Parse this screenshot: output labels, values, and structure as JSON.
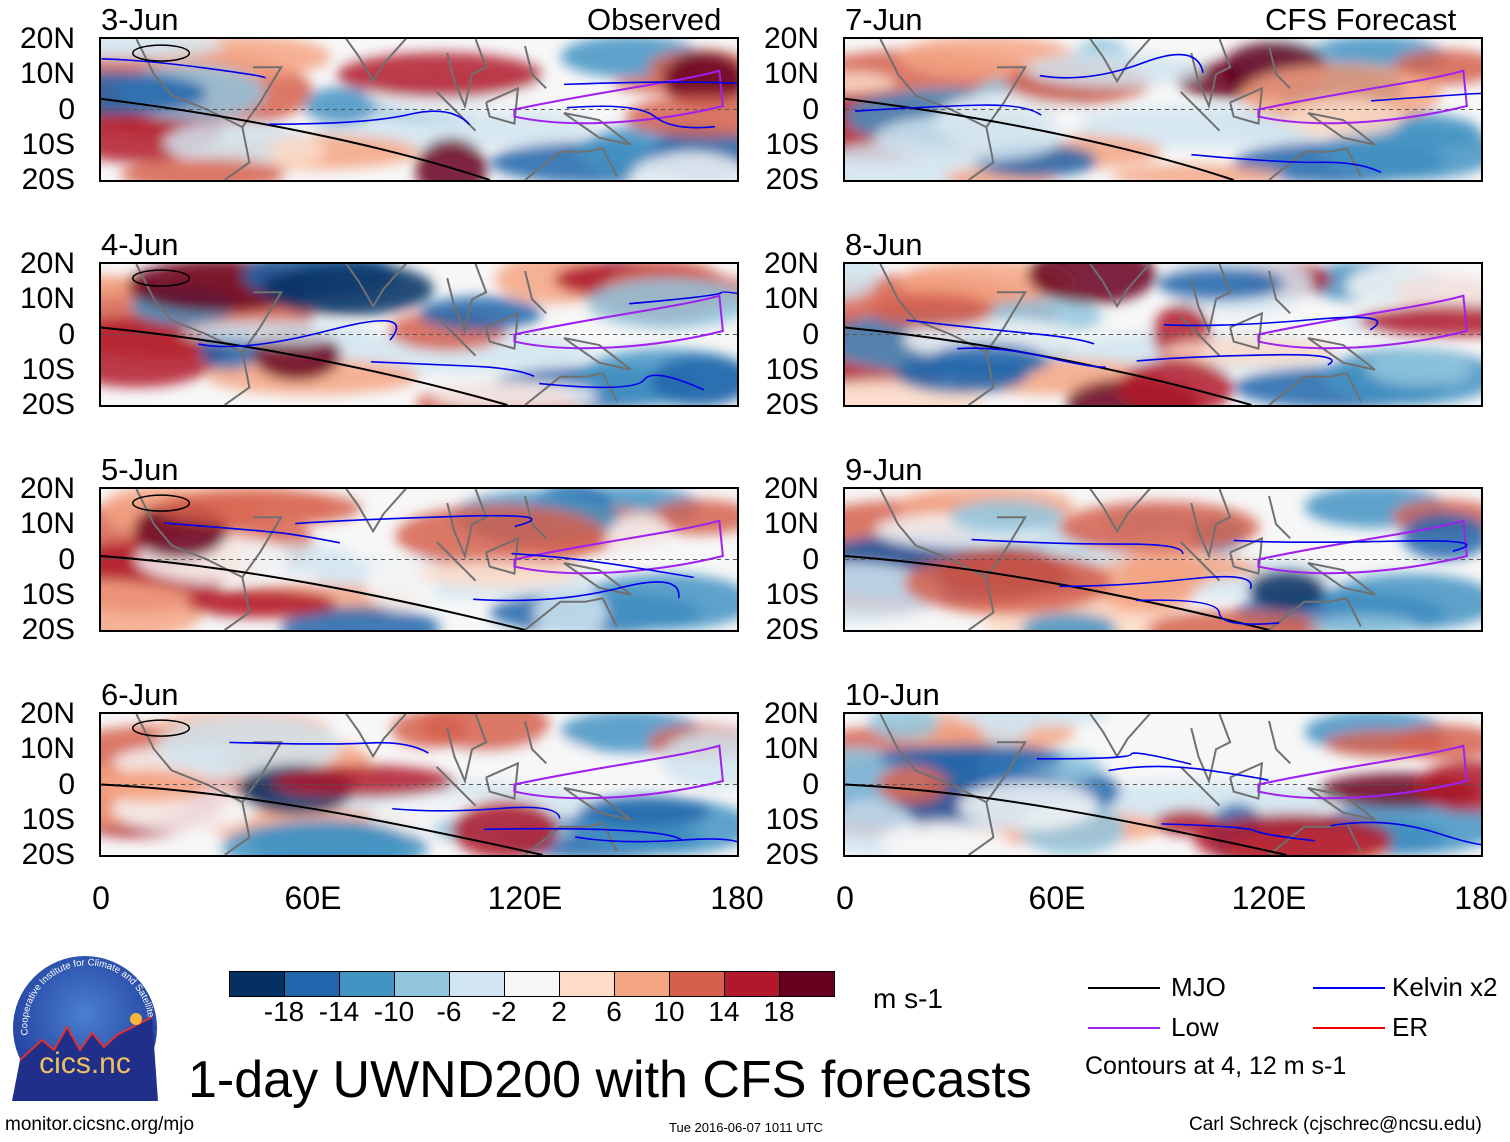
{
  "panels": {
    "observed_label": "Observed",
    "forecast_label": "CFS Forecast",
    "dates_observed": [
      "3-Jun",
      "4-Jun",
      "5-Jun",
      "6-Jun"
    ],
    "dates_forecast": [
      "7-Jun",
      "8-Jun",
      "9-Jun",
      "10-Jun"
    ]
  },
  "axes": {
    "lat_ticks": [
      "20N",
      "10N",
      "0",
      "10S",
      "20S"
    ],
    "lon_ticks": [
      "0",
      "60E",
      "120E",
      "180"
    ]
  },
  "colorbar": {
    "colors": [
      "#053061",
      "#2166ac",
      "#4393c3",
      "#92c5de",
      "#d1e5f0",
      "#f7f7f7",
      "#fddbc7",
      "#f4a582",
      "#d6604d",
      "#b2182b",
      "#67001f"
    ],
    "labels": [
      "-18",
      "-14",
      "-10",
      "-6",
      "-2",
      "2",
      "6",
      "10",
      "14",
      "18"
    ],
    "units": "m s-1"
  },
  "legend": {
    "items": [
      {
        "label": "MJO",
        "color": "#000000"
      },
      {
        "label": "Kelvin x2",
        "color": "#0000ee"
      },
      {
        "label": "Low",
        "color": "#a020f0"
      },
      {
        "label": "ER",
        "color": "#ee0000"
      }
    ],
    "note": "Contours at 4, 12 m s-1"
  },
  "title": "1-day UWND200 with CFS forecasts",
  "footer": {
    "url": "monitor.cicsnc.org/mjo",
    "timestamp": "Tue 2016-06-07 1011 UTC",
    "credit": "Carl Schreck (cjschrec@ncsu.edu)"
  },
  "logo": {
    "text": "cics.nc",
    "ring_text": "Cooperative Institute for Climate and Satellites"
  }
}
